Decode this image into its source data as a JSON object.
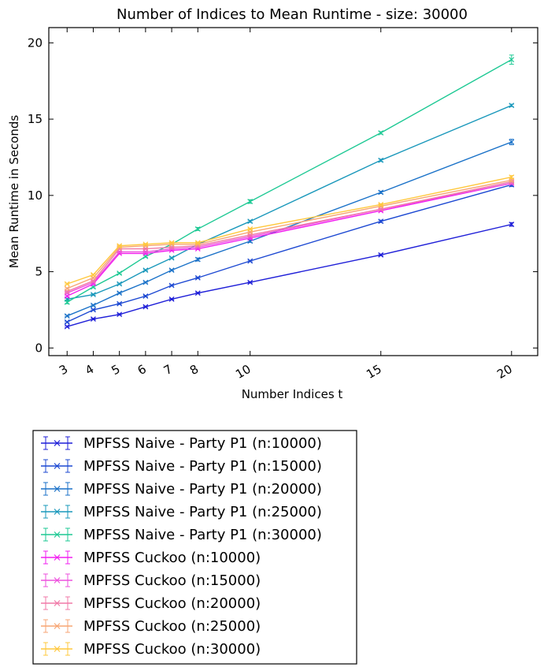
{
  "chart_data": {
    "type": "line",
    "title": "Number of Indices to Mean Runtime - size: 30000",
    "xlabel": "Number Indices t",
    "ylabel": "Mean Runtime in Seconds",
    "x": [
      3,
      4,
      5,
      6,
      7,
      8,
      10,
      15,
      20
    ],
    "xticks": [
      3,
      4,
      5,
      6,
      7,
      8,
      10,
      15,
      20
    ],
    "yticks": [
      0,
      5,
      10,
      15,
      20
    ],
    "xlim": [
      2.3,
      21.0
    ],
    "ylim": [
      -0.5,
      21
    ],
    "grid": false,
    "legend_position": "below",
    "series": [
      {
        "name": "MPFSS Naive - Party P1 (n:10000)",
        "color": "#1f1fd8",
        "values": [
          1.4,
          1.9,
          2.2,
          2.7,
          3.2,
          3.6,
          4.3,
          6.1,
          8.1
        ],
        "errors": [
          0.05,
          0.05,
          0.05,
          0.05,
          0.05,
          0.05,
          0.05,
          0.06,
          0.12
        ]
      },
      {
        "name": "MPFSS Naive - Party P1 (n:15000)",
        "color": "#1c48d2",
        "values": [
          1.7,
          2.5,
          2.9,
          3.4,
          4.1,
          4.6,
          5.7,
          8.3,
          10.7
        ],
        "errors": [
          0.05,
          0.05,
          0.05,
          0.05,
          0.05,
          0.05,
          0.05,
          0.08,
          0.12
        ]
      },
      {
        "name": "MPFSS Naive - Party P1 (n:20000)",
        "color": "#1b72c8",
        "values": [
          2.1,
          2.8,
          3.6,
          4.3,
          5.1,
          5.8,
          7.0,
          10.2,
          13.5
        ],
        "errors": [
          0.05,
          0.05,
          0.05,
          0.05,
          0.05,
          0.1,
          0.08,
          0.08,
          0.18
        ]
      },
      {
        "name": "MPFSS Naive - Party P1 (n:25000)",
        "color": "#1a98bb",
        "values": [
          3.2,
          3.5,
          4.2,
          5.1,
          5.9,
          6.8,
          8.3,
          12.3,
          15.9
        ],
        "errors": [
          0.06,
          0.05,
          0.05,
          0.05,
          0.05,
          0.05,
          0.07,
          0.08,
          0.08
        ]
      },
      {
        "name": "MPFSS Naive - Party P1 (n:30000)",
        "color": "#1ec994",
        "values": [
          3.0,
          4.0,
          4.9,
          6.0,
          6.8,
          7.8,
          9.6,
          14.1,
          18.9
        ],
        "errors": [
          0.1,
          0.06,
          0.05,
          0.06,
          0.06,
          0.1,
          0.12,
          0.08,
          0.3
        ]
      },
      {
        "name": "MPFSS Cuckoo (n:10000)",
        "color": "#f21ef0",
        "values": [
          3.4,
          4.2,
          6.2,
          6.2,
          6.4,
          6.5,
          7.2,
          9.0,
          10.8
        ],
        "errors": [
          0.05,
          0.05,
          0.05,
          0.05,
          0.05,
          0.05,
          0.05,
          0.06,
          0.08
        ]
      },
      {
        "name": "MPFSS Cuckoo (n:15000)",
        "color": "#ee52dd",
        "values": [
          3.6,
          4.3,
          6.3,
          6.3,
          6.5,
          6.6,
          7.3,
          9.1,
          10.8
        ],
        "errors": [
          0.05,
          0.05,
          0.05,
          0.05,
          0.05,
          0.05,
          0.05,
          0.06,
          0.08
        ]
      },
      {
        "name": "MPFSS Cuckoo (n:20000)",
        "color": "#f07aa8",
        "values": [
          3.7,
          4.4,
          6.5,
          6.5,
          6.6,
          6.7,
          7.4,
          9.1,
          10.9
        ],
        "errors": [
          0.05,
          0.05,
          0.05,
          0.05,
          0.05,
          0.05,
          0.05,
          0.06,
          0.08
        ]
      },
      {
        "name": "MPFSS Cuckoo (n:25000)",
        "color": "#f7a674",
        "values": [
          3.9,
          4.6,
          6.6,
          6.7,
          6.8,
          6.8,
          7.6,
          9.3,
          11.0
        ],
        "errors": [
          0.05,
          0.05,
          0.05,
          0.05,
          0.05,
          0.05,
          0.05,
          0.06,
          0.08
        ]
      },
      {
        "name": "MPFSS Cuckoo (n:30000)",
        "color": "#ffc83e",
        "values": [
          4.2,
          4.8,
          6.7,
          6.8,
          6.9,
          6.9,
          7.8,
          9.4,
          11.2
        ],
        "errors": [
          0.05,
          0.05,
          0.05,
          0.05,
          0.05,
          0.05,
          0.05,
          0.06,
          0.1
        ]
      }
    ]
  }
}
